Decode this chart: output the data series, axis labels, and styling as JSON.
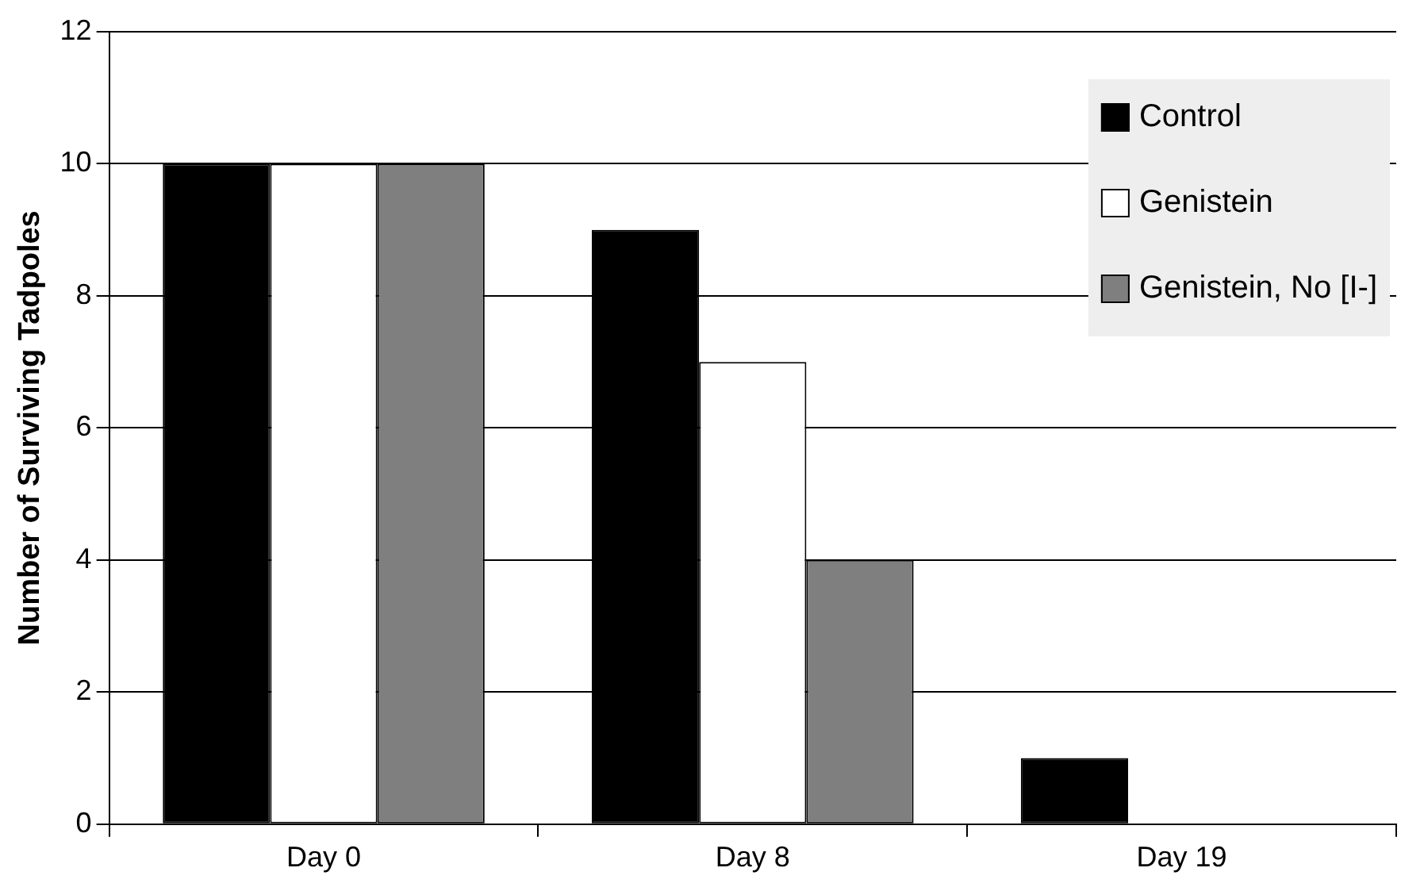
{
  "chart_data": {
    "type": "bar",
    "ylabel": "Number of Surviving Tadpoles",
    "categories": [
      "Day 0",
      "Day 8",
      "Day 19"
    ],
    "series": [
      {
        "name": "Control",
        "color": "#000000",
        "values": [
          10,
          9,
          1
        ]
      },
      {
        "name": "Genistein",
        "color": "#ffffff",
        "values": [
          10,
          7,
          0
        ]
      },
      {
        "name": "Genistein, No [I-]",
        "color": "#7f7f7f",
        "values": [
          10,
          4,
          0
        ]
      }
    ],
    "ylim": [
      0,
      12
    ],
    "yticks": [
      0,
      2,
      4,
      6,
      8,
      10,
      12
    ],
    "grid": "y",
    "legend": "top right"
  }
}
